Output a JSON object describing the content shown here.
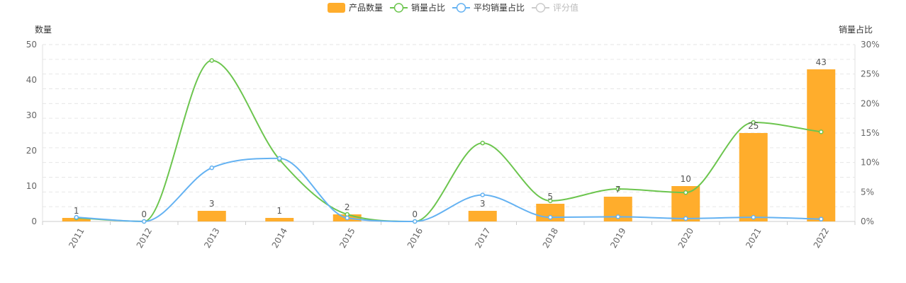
{
  "chart_data": {
    "type": "bar",
    "categories": [
      "2011",
      "2012",
      "2013",
      "2014",
      "2015",
      "2016",
      "2017",
      "2018",
      "2019",
      "2020",
      "2021",
      "2022"
    ],
    "legend": {
      "placement": "top-center",
      "items": [
        {
          "name": "产品数量",
          "color": "#FFAD2C",
          "shape": "rect",
          "active": true
        },
        {
          "name": "销量占比",
          "color": "#6CC54E",
          "shape": "line-circle",
          "active": true
        },
        {
          "name": "平均销量占比",
          "color": "#64B2F2",
          "shape": "line-circle",
          "active": true
        },
        {
          "name": "评分值",
          "color": "#CCCCCC",
          "shape": "line-circle",
          "active": false
        }
      ]
    },
    "y_left": {
      "name": "数量",
      "min": 0,
      "max": 50,
      "ticks": [
        "0",
        "10",
        "20",
        "30",
        "40",
        "50"
      ]
    },
    "y_right": {
      "name": "销量占比",
      "min": 0,
      "max": 30,
      "ticks": [
        "0%",
        "5%",
        "10%",
        "15%",
        "20%",
        "25%",
        "30%"
      ]
    },
    "grid": true,
    "series": [
      {
        "name": "产品数量",
        "type": "bar",
        "axis": "left",
        "color": "#FFAD2C",
        "values": [
          1,
          0,
          3,
          1,
          2,
          0,
          3,
          5,
          7,
          10,
          25,
          43
        ],
        "labels": [
          "1",
          "0",
          "3",
          "1",
          "2",
          "0",
          "3",
          "5",
          "7",
          "10",
          "25",
          "43"
        ]
      },
      {
        "name": "销量占比",
        "type": "line",
        "axis": "right",
        "color": "#6CC54E",
        "values": [
          0.6,
          0,
          27.3,
          10.5,
          1.2,
          0,
          13.3,
          3.5,
          5.5,
          4.9,
          16.8,
          15.2
        ]
      },
      {
        "name": "平均销量占比",
        "type": "line",
        "axis": "right",
        "color": "#64B2F2",
        "values": [
          0.7,
          0,
          9.1,
          10.7,
          0.6,
          0,
          4.5,
          0.7,
          0.8,
          0.5,
          0.7,
          0.4
        ]
      }
    ]
  }
}
